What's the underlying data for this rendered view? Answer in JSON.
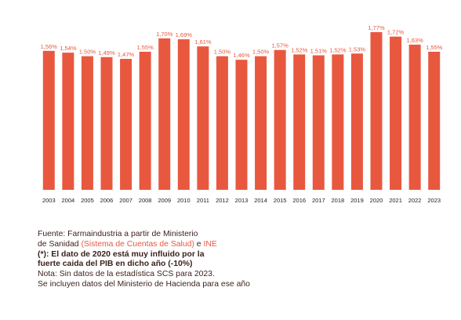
{
  "colors": {
    "bar": "#e8583f",
    "value_label": "#e8583f",
    "note_text": "#3a1f1a",
    "link": "#e8583f"
  },
  "chart_data": {
    "type": "bar",
    "categories": [
      "2003",
      "2004",
      "2005",
      "2006",
      "2007",
      "2008",
      "2009",
      "2010",
      "2011",
      "2012",
      "2013",
      "2014",
      "2015",
      "2016",
      "2017",
      "2018",
      "2019",
      "2020",
      "2021",
      "2022",
      "2023"
    ],
    "values": [
      1.56,
      1.54,
      1.5,
      1.49,
      1.47,
      1.55,
      1.7,
      1.69,
      1.61,
      1.5,
      1.46,
      1.5,
      1.57,
      1.52,
      1.51,
      1.52,
      1.53,
      1.77,
      1.72,
      1.63,
      1.55
    ],
    "value_labels": [
      "1,56%",
      "1,54%",
      "1,50%",
      "1,49%",
      "1,47%",
      "1,55%",
      "1,70%",
      "1,69%",
      "1,61%",
      "1,50%",
      "1,46%",
      "1,50%",
      "1,57%",
      "1,52%",
      "1,51%",
      "1,52%",
      "1,53%",
      "1,77%",
      "1,72%",
      "1,63%",
      "1,55%"
    ],
    "ylim": [
      0,
      1.77
    ],
    "grid": false,
    "legend": "none",
    "title": "",
    "xlabel": "",
    "ylabel": ""
  },
  "notes": {
    "line1": "Fuente: Farmaindustria a partir de Ministerio",
    "line2_pre": "de Sanidad ",
    "line2_link1": "(Sistema de Cuentas de Salud)",
    "line2_mid": " e ",
    "line2_link2": "INE",
    "line3": "(*): El dato de 2020 está muy influido por la",
    "line4": "fuerte caida del PIB en dicho año (-10%)",
    "line5": "Nota: Sin datos de la estadística SCS para 2023.",
    "line6": "Se incluyen datos del Ministerio de Hacienda para ese año"
  }
}
